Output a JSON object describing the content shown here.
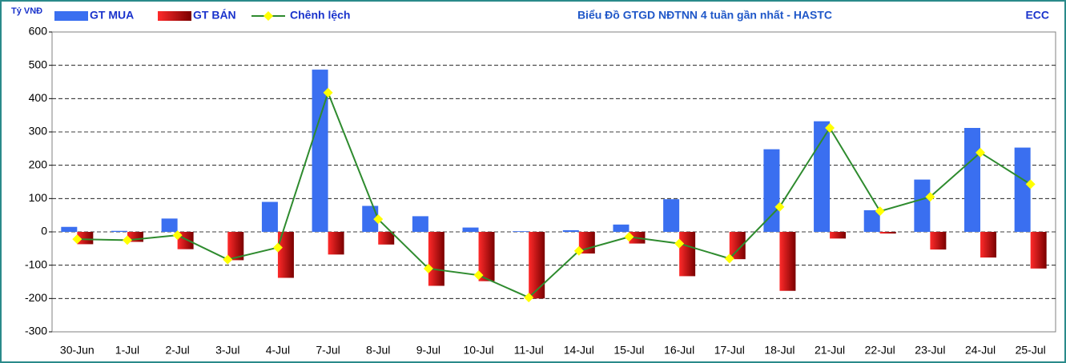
{
  "chart_data": {
    "type": "bar",
    "title": "Biểu Đồ GTGD NĐTNN 4 tuần gần nhất - HASTC",
    "source": "ECC",
    "y_label": "Tỷ VNĐ",
    "categories": [
      "30-Jun",
      "1-Jul",
      "2-Jul",
      "3-Jul",
      "4-Jul",
      "7-Jul",
      "8-Jul",
      "9-Jul",
      "10-Jul",
      "11-Jul",
      "14-Jul",
      "15-Jul",
      "16-Jul",
      "17-Jul",
      "18-Jul",
      "21-Jul",
      "22-Jul",
      "23-Jul",
      "24-Jul",
      "25-Jul"
    ],
    "series": [
      {
        "name": "GT MUA",
        "type": "bar",
        "color": "#3a6ff0",
        "values": [
          15,
          3,
          40,
          0,
          90,
          487,
          78,
          47,
          13,
          2,
          5,
          22,
          98,
          0,
          248,
          332,
          65,
          157,
          312,
          253
        ]
      },
      {
        "name": "GT BÁN",
        "type": "bar",
        "color": "#cc0000",
        "values": [
          -37,
          -30,
          -52,
          -85,
          -138,
          -68,
          -38,
          -162,
          -148,
          -200,
          -65,
          -35,
          -133,
          -82,
          -177,
          -20,
          -5,
          -53,
          -77,
          -110
        ]
      },
      {
        "name": "Chênh lệch",
        "type": "line",
        "color": "#2e8b2e",
        "marker_color": "#ffff00",
        "values": [
          -22,
          -25,
          -10,
          -83,
          -47,
          418,
          38,
          -110,
          -130,
          -197,
          -57,
          -15,
          -35,
          -80,
          75,
          312,
          62,
          105,
          238,
          143
        ]
      }
    ],
    "ylim": [
      -300,
      600
    ],
    "yticks": [
      -300,
      -200,
      -100,
      0,
      100,
      200,
      300,
      400,
      500,
      600
    ],
    "grid": true
  }
}
